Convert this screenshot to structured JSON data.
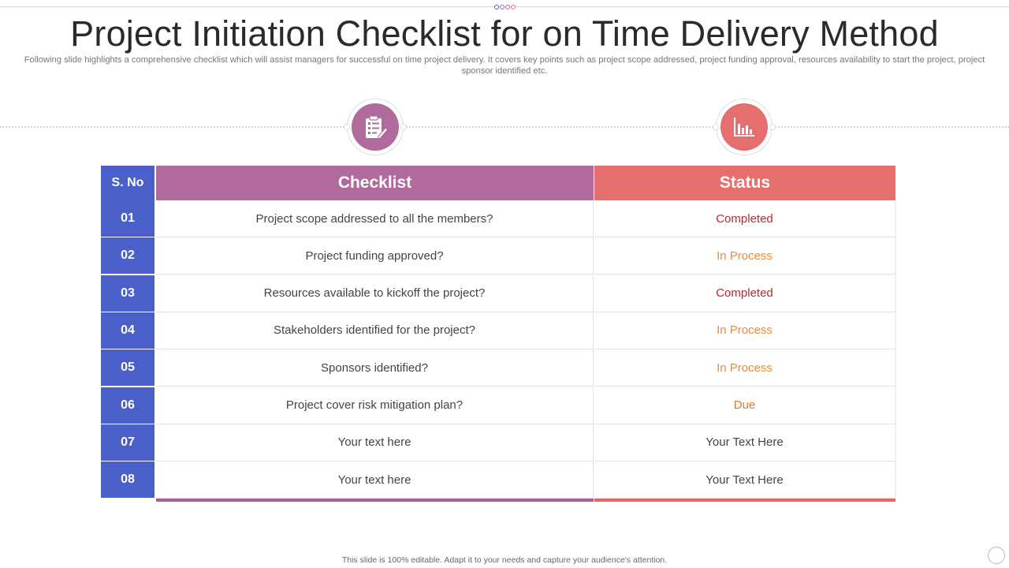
{
  "slide": {
    "title": "Project Initiation Checklist for on Time Delivery Method",
    "subtitle": "Following slide highlights a comprehensive checklist which will assist managers for successful on time project delivery. It covers key points such as project scope addressed, project funding approval, resources availability to start the project, project sponsor identified etc.",
    "footer": "This slide is 100% editable. Adapt it to your needs and capture your audience's attention."
  },
  "icons": {
    "left": "clipboard-checklist-icon",
    "right": "bar-chart-icon"
  },
  "colors": {
    "sno": "#4a5fc8",
    "checklist_header": "#b06b9c",
    "status_header": "#e56e6e",
    "completed": "#c0272d",
    "in_process": "#ef8a3c",
    "due": "#e07a2e",
    "placeholder": "#444444"
  },
  "table": {
    "headers": {
      "sno": "S. No",
      "checklist": "Checklist",
      "status": "Status"
    },
    "rows": [
      {
        "no": "01",
        "item": "Project scope addressed to all the members?",
        "status": "Completed",
        "kind": "completed"
      },
      {
        "no": "02",
        "item": "Project funding approved?",
        "status": "In Process",
        "kind": "in_process"
      },
      {
        "no": "03",
        "item": "Resources available to kickoff the project?",
        "status": "Completed",
        "kind": "completed"
      },
      {
        "no": "04",
        "item": "Stakeholders identified for the project?",
        "status": "In Process",
        "kind": "in_process"
      },
      {
        "no": "05",
        "item": "Sponsors identified?",
        "status": "In Process",
        "kind": "in_process"
      },
      {
        "no": "06",
        "item": "Project cover risk mitigation plan?",
        "status": "Due",
        "kind": "due"
      },
      {
        "no": "07",
        "item": "Your text here",
        "status": "Your Text Here",
        "kind": "placeholder"
      },
      {
        "no": "08",
        "item": "Your text here",
        "status": "Your Text Here",
        "kind": "placeholder"
      }
    ]
  }
}
